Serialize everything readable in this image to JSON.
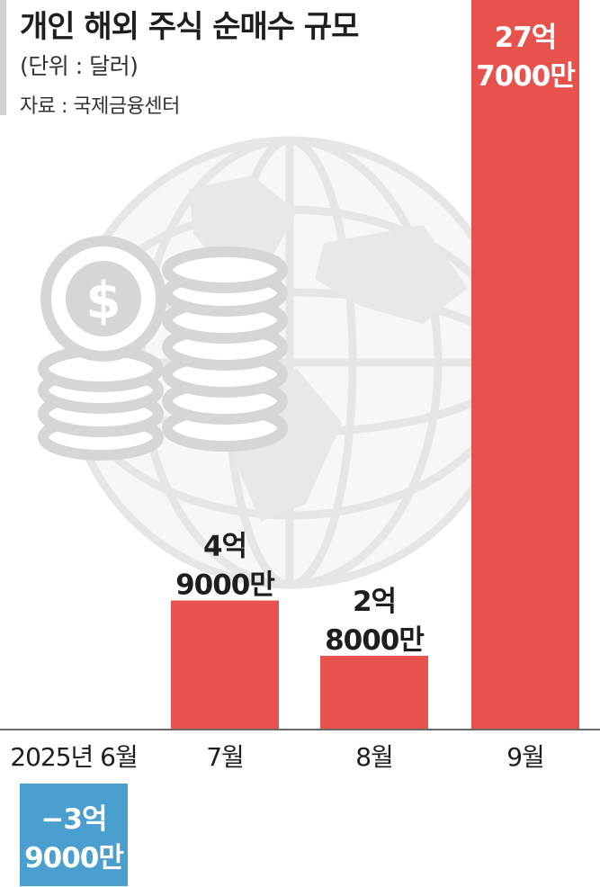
{
  "header": {
    "title": "개인 해외 주식 순매수 규모",
    "unit": "(단위 : 달러)",
    "source": "자료 : 국제금융센터"
  },
  "colors": {
    "positive_bar": "#e8524c",
    "negative_bar": "#4a9fcf",
    "illustration": "#e3e3e3",
    "text": "#1e1e1e"
  },
  "illustration": {
    "globe": "globe-icon",
    "coins": "coin-stack-icon",
    "dollar": "dollar-coin-icon"
  },
  "chart_data": {
    "type": "bar",
    "title": "개인 해외 주식 순매수 규모",
    "unit": "달러",
    "categories": [
      "2025년 6월",
      "7월",
      "8월",
      "9월"
    ],
    "values": [
      -390000000,
      490000000,
      280000000,
      2770000000
    ],
    "data_labels": [
      [
        "−3억",
        "9000만"
      ],
      [
        "4억",
        "9000만"
      ],
      [
        "2억",
        "8000만"
      ],
      [
        "27억",
        "7000만"
      ]
    ],
    "grid": false,
    "legend": "none"
  }
}
